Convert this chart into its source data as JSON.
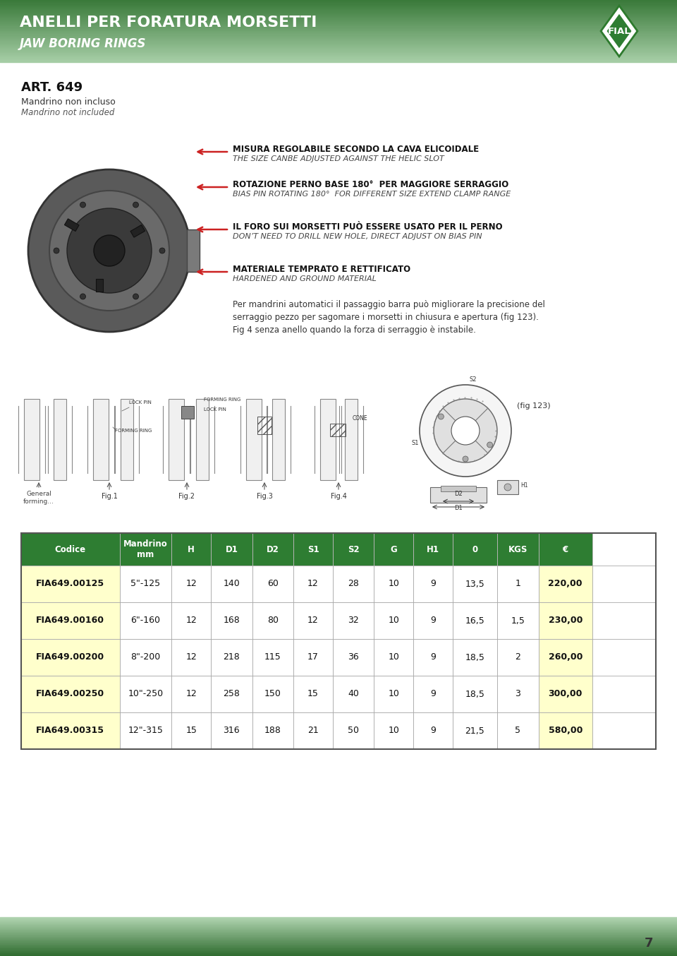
{
  "page_bg": "#ffffff",
  "header_text1": "ANELLI PER FORATURA MORSETTI",
  "header_text2": "JAW BORING RINGS",
  "art_number": "ART. 649",
  "art_sub1": "Mandrino non incluso",
  "art_sub2": "Mandrino not included",
  "bullet1_it": "MISURA REGOLABILE SECONDO LA CAVA ELICOIDALE",
  "bullet1_en": "THE SIZE CANBE ADJUSTED AGAINST THE HELIC SLOT",
  "bullet2_it": "ROTAZIONE PERNO BASE 180°  PER MAGGIORE SERRAGGIO",
  "bullet2_en": "BIAS PIN ROTATING 180°  FOR DIFFERENT SIZE EXTEND CLAMP RANGE",
  "bullet3_it": "IL FORO SUI MORSETTI PUÒ ESSERE USATO PER IL PERNO",
  "bullet3_en": "DON’T NEED TO DRILL NEW HOLE, DIRECT ADJUST ON BIAS PIN",
  "bullet4_it": "MATERIALE TEMPRATO E RETTIFICATO",
  "bullet4_en": "HARDENED AND GROUND MATERIAL",
  "desc_text1": "Per mandrini automatici il passaggio barra può migliorare la precisione del",
  "desc_text2": "serraggio pezzo per sagomare i morsetti in chiusura e apertura (fig 123).",
  "desc_text3": "Fig 4 senza anello quando la forza di serraggio è instabile.",
  "table_header_bg": "#2e7d32",
  "table_row_bg_yellow": "#ffffcc",
  "table_headers": [
    "Codice",
    "Mandrino\nmm",
    "H",
    "D1",
    "D2",
    "S1",
    "S2",
    "G",
    "H1",
    "0",
    "KGS",
    "€"
  ],
  "table_rows": [
    [
      "FIA649.00125",
      "5\"-125",
      "12",
      "140",
      "60",
      "12",
      "28",
      "10",
      "9",
      "13,5",
      "1",
      "220,00"
    ],
    [
      "FIA649.00160",
      "6\"-160",
      "12",
      "168",
      "80",
      "12",
      "32",
      "10",
      "9",
      "16,5",
      "1,5",
      "230,00"
    ],
    [
      "FIA649.00200",
      "8\"-200",
      "12",
      "218",
      "115",
      "17",
      "36",
      "10",
      "9",
      "18,5",
      "2",
      "260,00"
    ],
    [
      "FIA649.00250",
      "10\"-250",
      "12",
      "258",
      "150",
      "15",
      "40",
      "10",
      "9",
      "18,5",
      "3",
      "300,00"
    ],
    [
      "FIA649.00315",
      "12\"-315",
      "15",
      "316",
      "188",
      "21",
      "50",
      "10",
      "9",
      "21,5",
      "5",
      "580,00"
    ]
  ],
  "page_number": "7",
  "header_green_dark": "#3a7a3a",
  "header_green_light": "#a8cfa8",
  "footer_green_dark": "#2d6a2d",
  "footer_green_light": "#b0d4b0"
}
